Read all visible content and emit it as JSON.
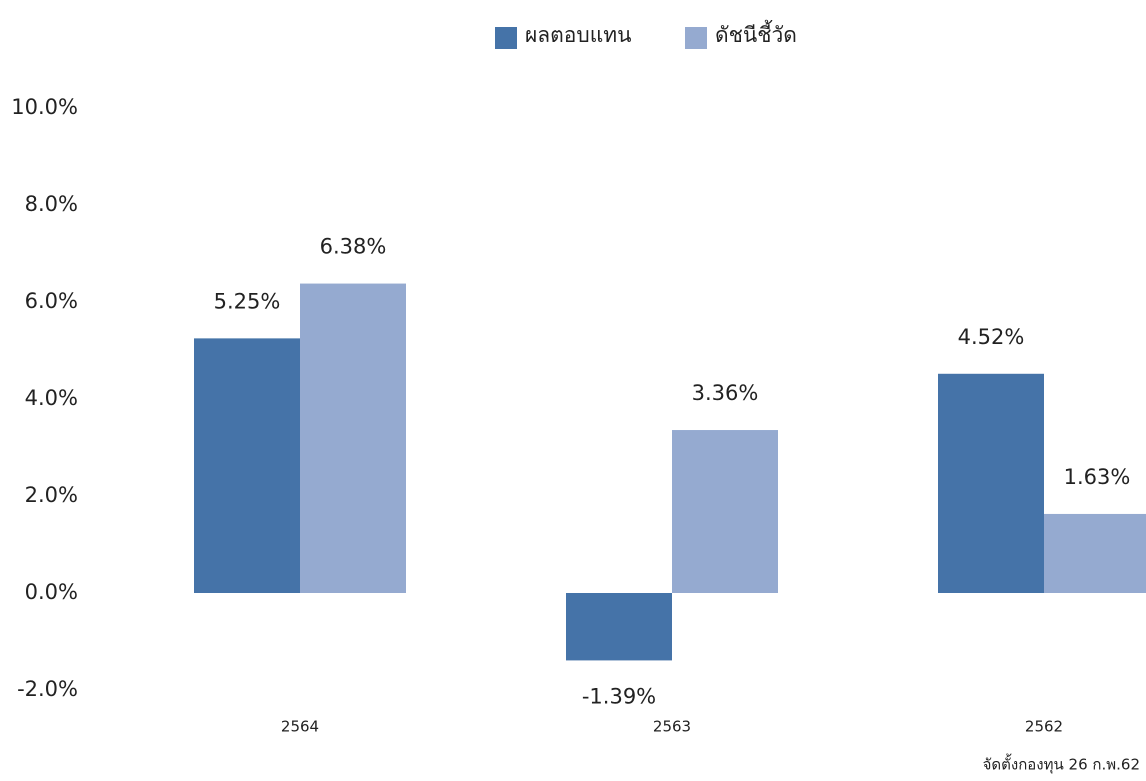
{
  "chart_data": {
    "type": "bar",
    "categories": [
      "2564",
      "2563",
      "2562"
    ],
    "series": [
      {
        "name": "ผลตอบแทน",
        "color": "#4573a8",
        "values": [
          5.25,
          -1.39,
          4.52
        ],
        "value_labels": [
          "5.25%",
          "-1.39%",
          "4.52%"
        ]
      },
      {
        "name": "ดัชนีชี้วัด",
        "color": "#95aad0",
        "values": [
          6.38,
          3.36,
          1.63
        ],
        "value_labels": [
          "6.38%",
          "3.36%",
          "1.63%"
        ]
      }
    ],
    "ylim": [
      -2,
      10
    ],
    "yticks": [
      {
        "value": -2,
        "label": "-2.0%"
      },
      {
        "value": 0,
        "label": "0.0%"
      },
      {
        "value": 2,
        "label": "2.0%"
      },
      {
        "value": 4,
        "label": "4.0%"
      },
      {
        "value": 6,
        "label": "6.0%"
      },
      {
        "value": 8,
        "label": "8.0%"
      },
      {
        "value": 10,
        "label": "10.0%"
      }
    ],
    "grid": false,
    "legend": "top",
    "annotation": "จัดตั้งกองทุน 26 ก.พ.62"
  }
}
